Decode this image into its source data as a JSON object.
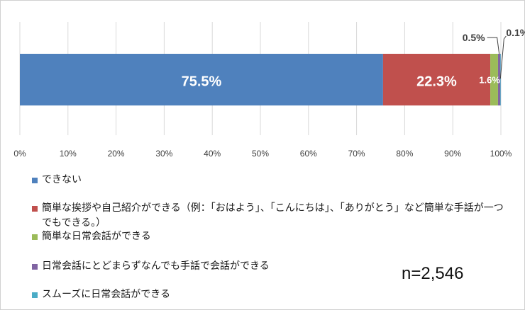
{
  "chart_data": {
    "type": "bar",
    "orientation": "horizontal",
    "stacked": true,
    "percent_stacked": true,
    "categories": [
      ""
    ],
    "series": [
      {
        "name": "できない",
        "values": [
          75.5
        ],
        "color": "#4f81bd",
        "label": "75.5%"
      },
      {
        "name": "簡単な挨拶や自己紹介ができる（例：「おはよう」、「こんにちは」、「ありがとう」など簡単な手話が一つでもできる。）",
        "values": [
          22.3
        ],
        "color": "#c0504d",
        "label": "22.3%"
      },
      {
        "name": "簡単な日常会話ができる",
        "values": [
          1.6
        ],
        "color": "#9bbb59",
        "label": "1.6%"
      },
      {
        "name": "日常会話にとどまらずなんでも手話で会話ができる",
        "values": [
          0.5
        ],
        "color": "#8064a2",
        "label": "0.5%"
      },
      {
        "name": "スムーズに日常会話ができる",
        "values": [
          0.1
        ],
        "color": "#4bacc6",
        "label": "0.1%"
      }
    ],
    "xlim": [
      0,
      100
    ],
    "x_ticks": [
      "0%",
      "10%",
      "20%",
      "30%",
      "40%",
      "50%",
      "60%",
      "70%",
      "80%",
      "90%",
      "100%"
    ],
    "grid": true,
    "legend_position": "bottom",
    "annotation": "n=2,546"
  }
}
